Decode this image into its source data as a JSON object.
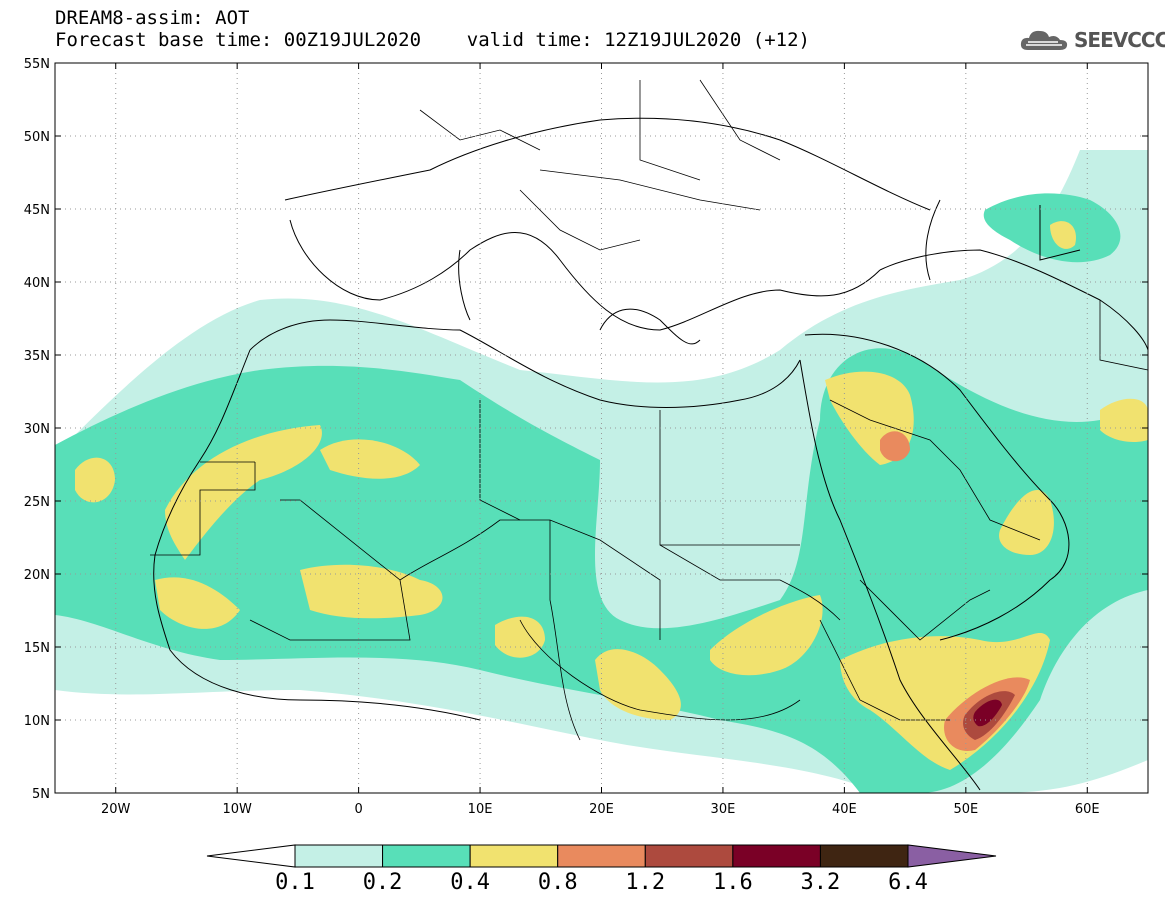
{
  "title": {
    "line1": "DREAM8-assim: AOT",
    "line2": "Forecast base time: 00Z19JUL2020    valid time: 12Z19JUL2020 (+12)"
  },
  "brand": {
    "name": "SEEVCCC",
    "icon": "cloud-logo-icon"
  },
  "map": {
    "projection": "lat-lon",
    "lon_range": [
      -25,
      65
    ],
    "lat_range": [
      5,
      55
    ],
    "lon_ticks": [
      {
        "value": -20,
        "label": "20W"
      },
      {
        "value": -10,
        "label": "10W"
      },
      {
        "value": 0,
        "label": "0"
      },
      {
        "value": 10,
        "label": "10E"
      },
      {
        "value": 20,
        "label": "20E"
      },
      {
        "value": 30,
        "label": "30E"
      },
      {
        "value": 40,
        "label": "40E"
      },
      {
        "value": 50,
        "label": "50E"
      },
      {
        "value": 60,
        "label": "60E"
      }
    ],
    "lat_ticks": [
      {
        "value": 55,
        "label": "55N"
      },
      {
        "value": 50,
        "label": "50N"
      },
      {
        "value": 45,
        "label": "45N"
      },
      {
        "value": 40,
        "label": "40N"
      },
      {
        "value": 35,
        "label": "35N"
      },
      {
        "value": 30,
        "label": "30N"
      },
      {
        "value": 25,
        "label": "25N"
      },
      {
        "value": 20,
        "label": "20N"
      },
      {
        "value": 15,
        "label": "15N"
      },
      {
        "value": 10,
        "label": "10N"
      },
      {
        "value": 5,
        "label": "5N"
      }
    ],
    "grid": "dotted"
  },
  "colorbar": {
    "labels": [
      "0.1",
      "0.2",
      "0.4",
      "0.8",
      "1.2",
      "1.6",
      "3.2",
      "6.4"
    ],
    "colors": [
      "#ffffff",
      "#c4f0e6",
      "#58dfb8",
      "#f1e26f",
      "#e98a5e",
      "#ad4a3e",
      "#7a0026",
      "#3f2512",
      "#8a5fa3"
    ]
  }
}
